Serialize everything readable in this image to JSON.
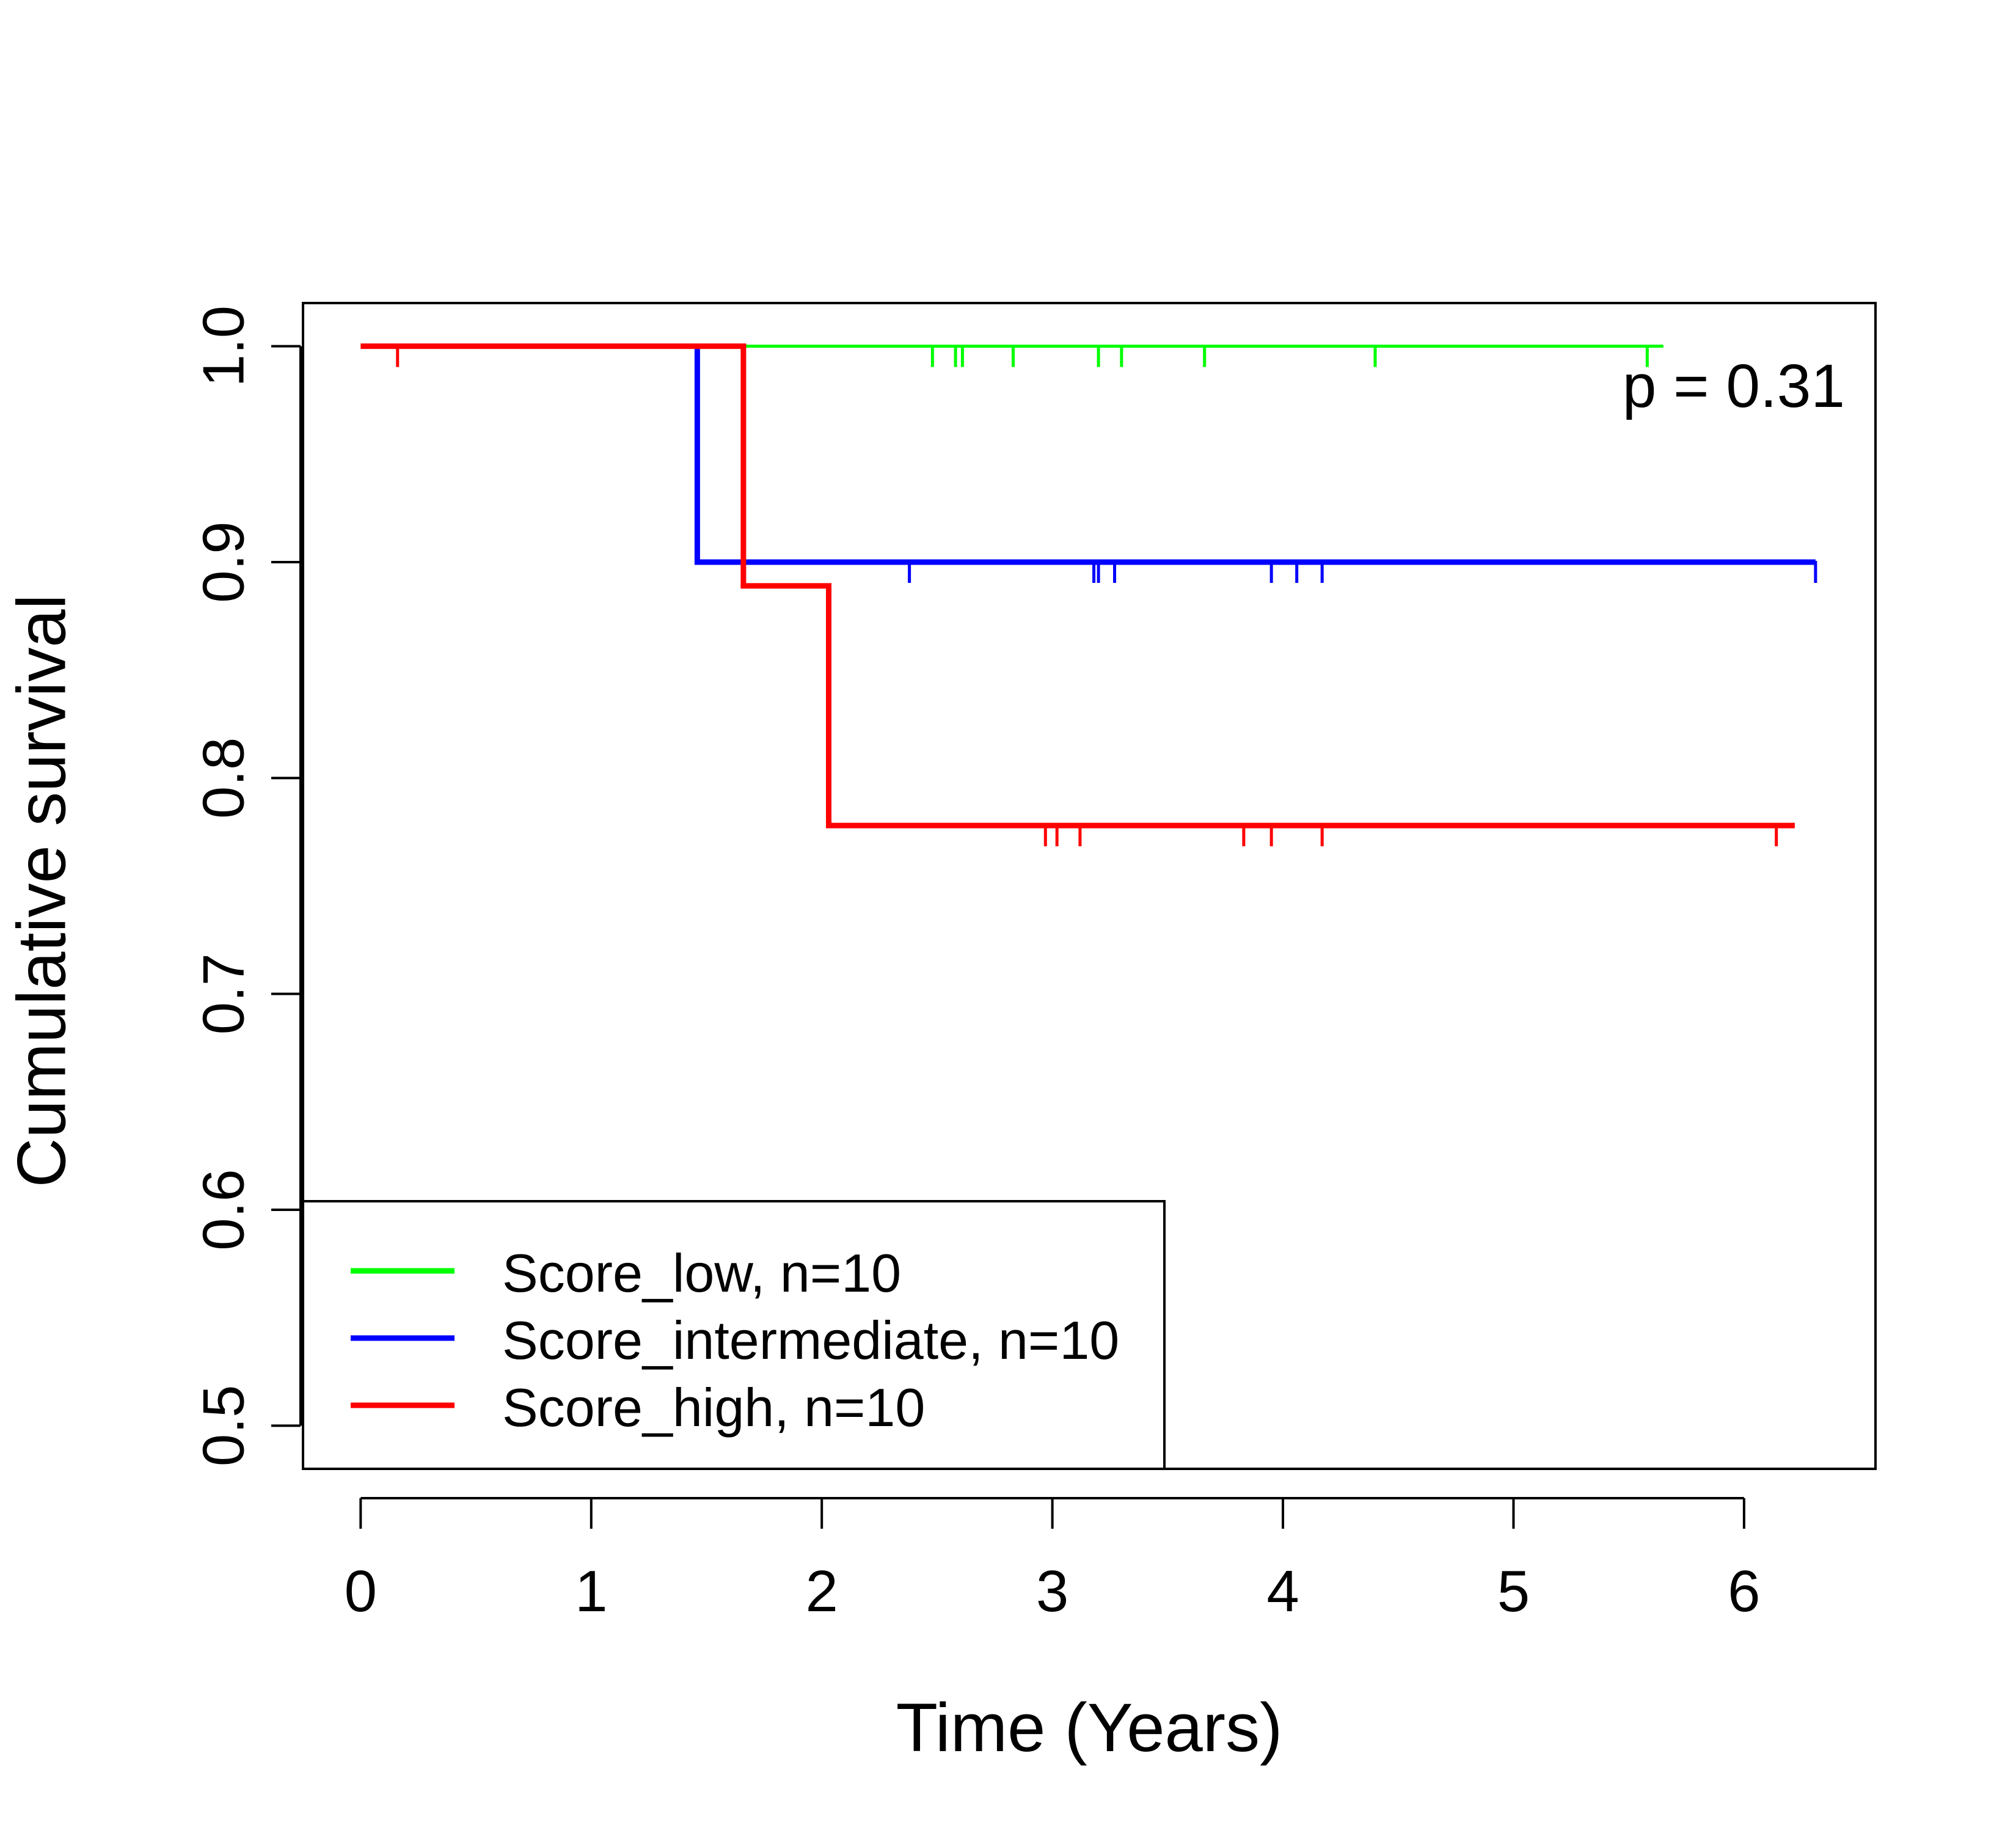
{
  "chart_data": {
    "type": "line",
    "subtype": "kaplan-meier",
    "title": "",
    "xlabel": "Time (Years)",
    "ylabel": "Cumulative survival",
    "xlim": [
      -0.25,
      6.57
    ],
    "ylim": [
      0.48,
      1.02
    ],
    "xticks": [
      0,
      1,
      2,
      3,
      4,
      5,
      6
    ],
    "yticks": [
      0.5,
      0.6,
      0.7,
      0.8,
      0.9,
      1.0
    ],
    "xtick_labels": [
      "0",
      "1",
      "2",
      "3",
      "4",
      "5",
      "6"
    ],
    "ytick_labels": [
      "0.5",
      "0.6",
      "0.7",
      "0.8",
      "0.9",
      "1.0"
    ],
    "grid": false,
    "legend_position": "bottom-left",
    "annotation": "p = 0.31",
    "series": [
      {
        "name": "Score_low, n=10",
        "color": "#00ff00",
        "steps": [
          [
            0,
            1.0
          ],
          [
            5.65,
            1.0
          ]
        ],
        "censor_times": [
          2.48,
          2.58,
          2.61,
          2.83,
          3.2,
          3.3,
          3.66,
          4.4,
          5.58
        ]
      },
      {
        "name": "Score_intermediate, n=10",
        "color": "#0000ff",
        "steps": [
          [
            1.46,
            1.0
          ],
          [
            1.46,
            0.9
          ],
          [
            6.31,
            0.9
          ]
        ],
        "censor_times": [
          2.38,
          3.18,
          3.2,
          3.27,
          3.95,
          4.06,
          4.17,
          6.31
        ]
      },
      {
        "name": "Score_high, n=10",
        "color": "#ff0000",
        "steps": [
          [
            0,
            1.0
          ],
          [
            1.66,
            1.0
          ],
          [
            1.66,
            0.889
          ],
          [
            2.03,
            0.889
          ],
          [
            2.03,
            0.778
          ],
          [
            6.22,
            0.778
          ]
        ],
        "censor_times": [
          0.16,
          2.97,
          3.02,
          3.12,
          3.83,
          3.95,
          4.17,
          6.14
        ]
      }
    ]
  }
}
